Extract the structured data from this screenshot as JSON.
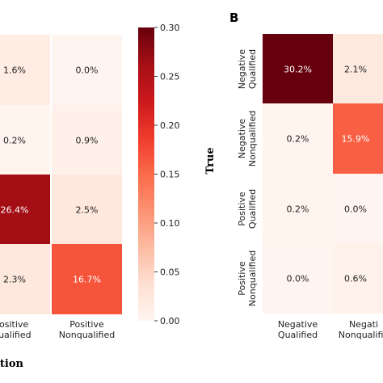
{
  "chart_data": [
    {
      "type": "heatmap",
      "panel": "",
      "columns": [
        "Positive\nQualified",
        "Positive\nNonqualified"
      ],
      "values": [
        [
          "1.6%",
          "0.0%"
        ],
        [
          "0.2%",
          "0.9%"
        ],
        [
          "26.4%",
          "2.5%"
        ],
        [
          "2.3%",
          "16.7%"
        ]
      ],
      "numeric": [
        [
          0.016,
          0.0
        ],
        [
          0.002,
          0.009
        ],
        [
          0.264,
          0.025
        ],
        [
          0.023,
          0.167
        ]
      ],
      "xlabel": "ction",
      "colorbar": {
        "range": [
          0.0,
          0.3
        ],
        "ticks": [
          "0.30",
          "0.25",
          "0.20",
          "0.15",
          "0.10",
          "0.05",
          "0.00"
        ]
      }
    },
    {
      "type": "heatmap",
      "panel": "B",
      "rows": [
        "Negative\nQualified",
        "Negative\nNonqualified",
        "Positive\nQualified",
        "Positive\nNonqualified"
      ],
      "columns": [
        "Negative\nQualified",
        "Negati\nNonqualifie"
      ],
      "values": [
        [
          "30.2%",
          "2.1%"
        ],
        [
          "0.2%",
          "15.9%"
        ],
        [
          "0.2%",
          "0.0%"
        ],
        [
          "0.0%",
          "0.6%"
        ]
      ],
      "numeric": [
        [
          0.302,
          0.021
        ],
        [
          0.002,
          0.159
        ],
        [
          0.002,
          0.0
        ],
        [
          0.0,
          0.006
        ]
      ],
      "ylabel": "True"
    }
  ],
  "colors": {
    "cmap_low": "#fff5f0",
    "cmap_high": "#67000d"
  }
}
